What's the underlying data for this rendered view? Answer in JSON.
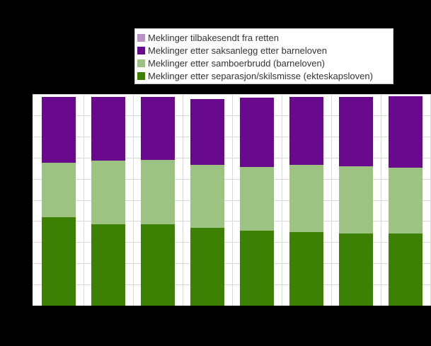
{
  "figure": {
    "page_background": "#000000",
    "plot_background": "#ffffff",
    "grid_color": "#d9d9d9"
  },
  "legend": {
    "background": "#ffffff",
    "border_color": "#cccccc",
    "position": "top-center",
    "items": [
      {
        "label": "Meklinger tilbakesendt fra retten",
        "color": "#b794c4"
      },
      {
        "label": "Meklinger etter saksanlegg etter barneloven",
        "color": "#68098e"
      },
      {
        "label": "Meklinger etter samboerbrudd (barneloven)",
        "color": "#9dc383"
      },
      {
        "label": "Meklinger etter separasjon/skilsmisse (ekteskapsloven)",
        "color": "#3d8104"
      }
    ]
  },
  "chart_data": {
    "type": "bar",
    "stacked": true,
    "orientation": "vertical",
    "title": "",
    "xlabel": "",
    "ylabel": "",
    "categories": [
      "",
      "",
      "",
      "",
      "",
      "",
      "",
      ""
    ],
    "series": [
      {
        "name": "Meklinger tilbakesendt fra retten",
        "color": "#b794c4",
        "values": [
          0,
          0,
          0,
          0,
          0,
          0,
          0,
          0
        ]
      },
      {
        "name": "Meklinger etter saksanlegg etter barneloven",
        "color": "#68098e",
        "values": [
          3.1,
          3.0,
          2.97,
          3.1,
          3.27,
          3.23,
          3.27,
          3.37
        ]
      },
      {
        "name": "Meklinger etter samboerbrudd (barneloven)",
        "color": "#9dc383",
        "values": [
          2.6,
          3.03,
          3.07,
          3.0,
          3.03,
          3.17,
          3.2,
          3.13
        ]
      },
      {
        "name": "Meklinger etter separasjon/skilsmisse (ekteskapsloven)",
        "color": "#3d8104",
        "values": [
          4.17,
          3.83,
          3.83,
          3.67,
          3.53,
          3.47,
          3.4,
          3.4
        ]
      }
    ],
    "stack_order_bottom_to_top": [
      "Meklinger etter separasjon/skilsmisse (ekteskapsloven)",
      "Meklinger etter samboerbrudd (barneloven)",
      "Meklinger etter saksanlegg etter barneloven",
      "Meklinger tilbakesendt fra retten"
    ],
    "ylim": [
      0,
      10
    ],
    "y_gridline_step": 1,
    "value_unit_note": "axis tick labels not visible in image; values measured in y-gridline intervals",
    "grid": {
      "horizontal": true,
      "vertical": true
    },
    "legend_position": "top-center",
    "axis_tick_labels_visible": false
  }
}
